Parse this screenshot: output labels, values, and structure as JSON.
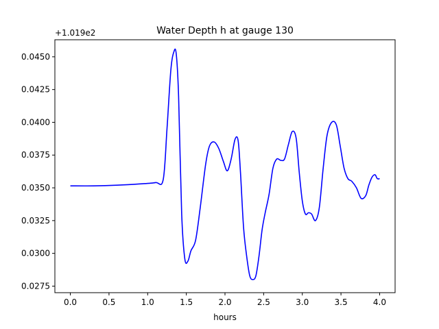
{
  "chart_data": {
    "type": "line",
    "title": "Water Depth h at gauge 130",
    "xlabel": "hours",
    "ylabel": "",
    "offset_label": "+1.019e2",
    "xlim": [
      -0.2,
      4.2
    ],
    "ylim": [
      0.027,
      0.0463
    ],
    "x_ticks": [
      0.0,
      0.5,
      1.0,
      1.5,
      2.0,
      2.5,
      3.0,
      3.5,
      4.0
    ],
    "x_tick_labels": [
      "0.0",
      "0.5",
      "1.0",
      "1.5",
      "2.0",
      "2.5",
      "3.0",
      "3.5",
      "4.0"
    ],
    "y_ticks": [
      0.0275,
      0.03,
      0.0325,
      0.035,
      0.0375,
      0.04,
      0.0425,
      0.045
    ],
    "y_tick_labels": [
      "0.0275",
      "0.0300",
      "0.0325",
      "0.0350",
      "0.0375",
      "0.0400",
      "0.0425",
      "0.0450"
    ],
    "grid": false,
    "legend": "none",
    "series": [
      {
        "color": "#0000ff",
        "x": [
          0.0,
          0.3,
          0.6,
          0.9,
          1.1,
          1.2,
          1.25,
          1.3,
          1.34,
          1.37,
          1.4,
          1.44,
          1.48,
          1.52,
          1.56,
          1.62,
          1.68,
          1.75,
          1.8,
          1.86,
          1.92,
          1.98,
          2.03,
          2.08,
          2.13,
          2.17,
          2.2,
          2.24,
          2.28,
          2.32,
          2.36,
          2.4,
          2.44,
          2.48,
          2.52,
          2.57,
          2.62,
          2.67,
          2.72,
          2.77,
          2.82,
          2.87,
          2.92,
          2.96,
          3.0,
          3.04,
          3.08,
          3.12,
          3.17,
          3.22,
          3.27,
          3.32,
          3.38,
          3.44,
          3.49,
          3.54,
          3.59,
          3.64,
          3.7,
          3.76,
          3.82,
          3.86,
          3.9,
          3.94,
          3.97,
          4.0
        ],
        "y": [
          0.03515,
          0.03515,
          0.0352,
          0.0353,
          0.0354,
          0.0356,
          0.0395,
          0.044,
          0.0454,
          0.0452,
          0.042,
          0.033,
          0.0296,
          0.0294,
          0.0302,
          0.031,
          0.0335,
          0.0368,
          0.0382,
          0.0385,
          0.038,
          0.037,
          0.0363,
          0.0372,
          0.0387,
          0.0386,
          0.0362,
          0.032,
          0.0298,
          0.0283,
          0.028,
          0.0283,
          0.0298,
          0.0318,
          0.0331,
          0.0345,
          0.0365,
          0.0372,
          0.0371,
          0.0372,
          0.0383,
          0.0393,
          0.0388,
          0.0362,
          0.034,
          0.033,
          0.0331,
          0.033,
          0.0325,
          0.0335,
          0.0365,
          0.039,
          0.04,
          0.0398,
          0.0382,
          0.0365,
          0.0357,
          0.0355,
          0.035,
          0.0342,
          0.0344,
          0.0352,
          0.0358,
          0.036,
          0.0357,
          0.0357
        ]
      }
    ]
  }
}
